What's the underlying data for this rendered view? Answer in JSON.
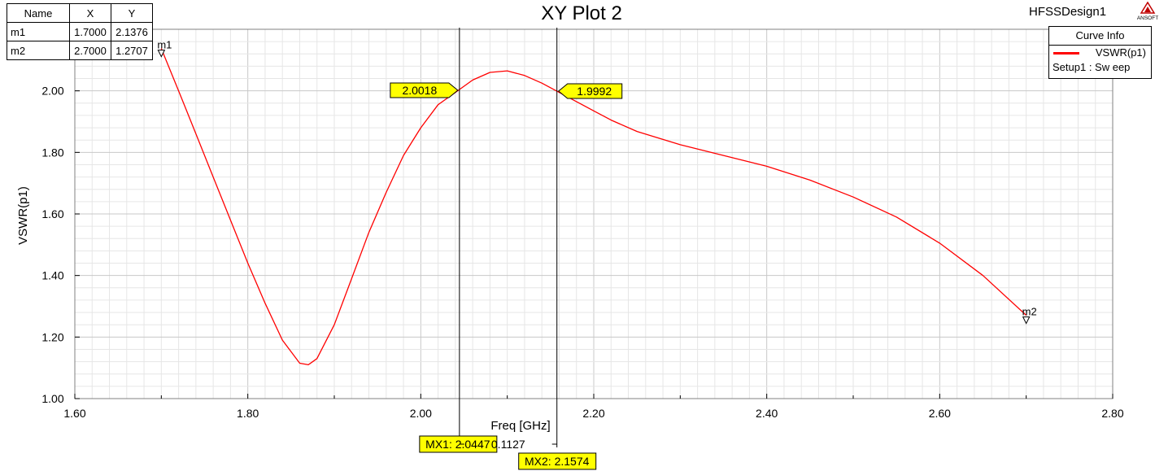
{
  "chart_data": {
    "type": "line",
    "title": "XY Plot 2",
    "design_name": "HFSSDesign1",
    "logo_text": "ANSOFT",
    "xlabel": "Freq [GHz]",
    "ylabel": "VSWR(p1)",
    "xlim": [
      1.6,
      2.8
    ],
    "ylim": [
      1.0,
      2.2
    ],
    "x_ticks": [
      "1.60",
      "1.80",
      "2.00",
      "2.20",
      "2.40",
      "2.60",
      "2.80"
    ],
    "y_ticks": [
      "1.00",
      "1.20",
      "1.40",
      "1.60",
      "1.80",
      "2.00"
    ],
    "grid": true,
    "series": [
      {
        "name": "VSWR(p1)",
        "color": "#ff0000",
        "x": [
          1.7,
          1.72,
          1.74,
          1.76,
          1.78,
          1.8,
          1.82,
          1.84,
          1.86,
          1.87,
          1.88,
          1.9,
          1.92,
          1.94,
          1.96,
          1.98,
          2.0,
          2.02,
          2.04,
          2.06,
          2.08,
          2.1,
          2.12,
          2.14,
          2.16,
          2.18,
          2.2,
          2.22,
          2.25,
          2.3,
          2.35,
          2.4,
          2.45,
          2.5,
          2.55,
          2.6,
          2.65,
          2.7
        ],
        "y": [
          2.1376,
          2.0,
          1.86,
          1.72,
          1.58,
          1.44,
          1.31,
          1.19,
          1.115,
          1.11,
          1.13,
          1.24,
          1.39,
          1.54,
          1.67,
          1.79,
          1.88,
          1.955,
          1.995,
          2.035,
          2.06,
          2.065,
          2.05,
          2.025,
          1.995,
          1.965,
          1.935,
          1.905,
          1.868,
          1.825,
          1.79,
          1.755,
          1.71,
          1.655,
          1.59,
          1.505,
          1.4,
          1.2707
        ]
      }
    ],
    "markers": [
      {
        "name": "m1",
        "x": 1.7,
        "y": 2.1376,
        "x_label": "1.7000",
        "y_label": "2.1376"
      },
      {
        "name": "m2",
        "x": 2.7,
        "y": 1.2707,
        "x_label": "2.7000",
        "y_label": "1.2707"
      }
    ],
    "marker_table": {
      "headers": [
        "Name",
        "X",
        "Y"
      ]
    },
    "cursors": [
      {
        "name": "MX1",
        "x": 2.0447,
        "label": "MX1: 2.0447",
        "value_label": "2.0018",
        "y": 2.0018
      },
      {
        "name": "MX2",
        "x": 2.1574,
        "label": "MX2: 2.1574",
        "value_label": "1.9992",
        "y": 1.9992
      }
    ],
    "cursor_delta": "0.1127",
    "curve_info": {
      "title": "Curve Info",
      "entry": "VSWR(p1)",
      "setup": "Setup1 : Sw eep"
    }
  }
}
